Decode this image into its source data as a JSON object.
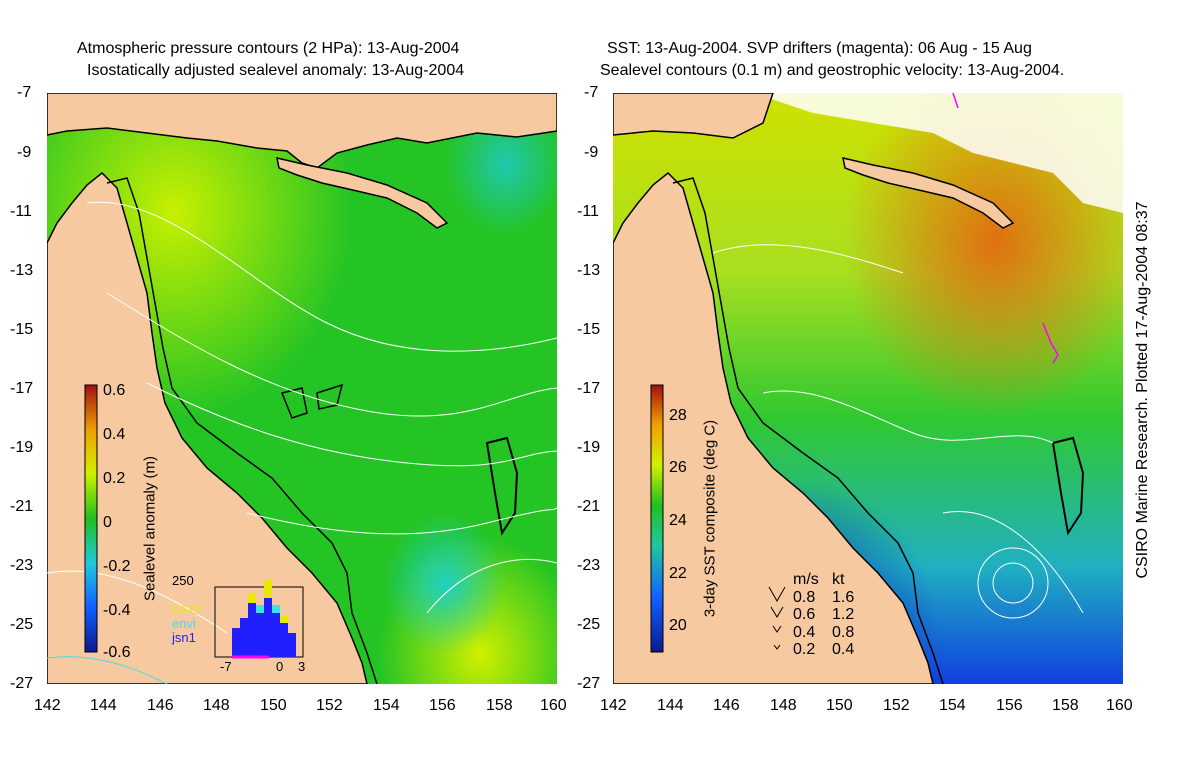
{
  "left_panel": {
    "title_line1": "Atmospheric pressure contours (2 HPa): 13-Aug-2004",
    "title_line2": "Isostatically adjusted sealevel anomaly: 13-Aug-2004",
    "colorbar_label": "Sealevel anomaly (m)",
    "colorbar_ticks": [
      "0.6",
      "0.4",
      "0.2",
      "0",
      "-0.2",
      "-0.4",
      "-0.6"
    ],
    "histogram": {
      "ymax_label": "250",
      "x_labels": [
        "-7",
        "0",
        "3"
      ],
      "legend": [
        {
          "label": "GFO",
          "color": "#e8e800"
        },
        {
          "label": "envi",
          "color": "#40e0e0"
        },
        {
          "label": "jsn1",
          "color": "#2020ff"
        }
      ]
    }
  },
  "right_panel": {
    "title_line1": "SST: 13-Aug-2004. SVP drifters (magenta): 06 Aug - 15 Aug",
    "title_line2": "Sealevel contours (0.1 m) and geostrophic velocity: 13-Aug-2004.",
    "colorbar_label": "3-day SST composite (deg C)",
    "colorbar_ticks": [
      "28",
      "26",
      "24",
      "22",
      "20"
    ],
    "velocity_legend": {
      "header_ms": "m/s",
      "header_kt": "kt",
      "rows": [
        {
          "ms": "0.8",
          "kt": "1.6"
        },
        {
          "ms": "0.6",
          "kt": "1.2"
        },
        {
          "ms": "0.4",
          "kt": "0.8"
        },
        {
          "ms": "0.2",
          "kt": "0.4"
        }
      ]
    }
  },
  "axes": {
    "lat_ticks": [
      "-7",
      "-9",
      "-11",
      "-13",
      "-15",
      "-17",
      "-19",
      "-21",
      "-23",
      "-25",
      "-27"
    ],
    "lon_ticks": [
      "142",
      "144",
      "146",
      "148",
      "150",
      "152",
      "154",
      "156",
      "158",
      "160"
    ]
  },
  "credit": "CSIRO Marine Research. Plotted 17-Aug-2004 08:37",
  "colors": {
    "land": "#f7c9a0",
    "ocean_left": "#22c422",
    "contour": "#ffffff",
    "coast": "#000000"
  }
}
